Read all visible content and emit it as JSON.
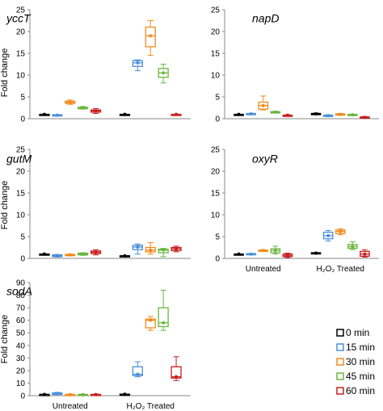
{
  "chart_data": [
    {
      "type": "box",
      "title": "yccT",
      "ylabel": "Fold change",
      "ylim": [
        0,
        25
      ],
      "yticks": [
        0,
        5,
        10,
        15,
        20,
        25
      ],
      "categories": [
        "Untreated",
        "H₂O₂ Treated"
      ],
      "show_categories": false,
      "groups": [
        {
          "category": "Untreated",
          "boxes": [
            {
              "series": "0 min",
              "min": 1.0,
              "q1": 1.0,
              "median": 1.0,
              "q3": 1.0,
              "max": 1.0
            },
            {
              "series": "15 min",
              "min": 0.6,
              "q1": 0.7,
              "median": 0.8,
              "q3": 0.9,
              "max": 0.9
            },
            {
              "series": "30 min",
              "min": 3.3,
              "q1": 3.5,
              "median": 3.8,
              "q3": 4.0,
              "max": 4.3
            },
            {
              "series": "45 min",
              "min": 2.2,
              "q1": 2.3,
              "median": 2.5,
              "q3": 2.6,
              "max": 2.8
            },
            {
              "series": "60 min",
              "min": 1.2,
              "q1": 1.5,
              "median": 1.8,
              "q3": 2.0,
              "max": 2.3
            }
          ]
        },
        {
          "category": "H₂O₂ Treated",
          "boxes": [
            {
              "series": "0 min",
              "min": 1.0,
              "q1": 1.0,
              "median": 1.0,
              "q3": 1.0,
              "max": 1.0
            },
            {
              "series": "15 min",
              "min": 11.0,
              "q1": 12.0,
              "median": 12.8,
              "q3": 13.3,
              "max": 13.5
            },
            {
              "series": "30 min",
              "min": 14.5,
              "q1": 16.5,
              "median": 19.0,
              "q3": 21.0,
              "max": 22.5
            },
            {
              "series": "45 min",
              "min": 8.2,
              "q1": 9.5,
              "median": 10.5,
              "q3": 11.5,
              "max": 12.5
            },
            {
              "series": "60 min",
              "min": 1.0,
              "q1": 1.0,
              "median": 1.0,
              "q3": 1.0,
              "max": 1.0
            }
          ]
        }
      ]
    },
    {
      "type": "box",
      "title": "napD",
      "ylabel": "",
      "ylim": [
        0,
        25
      ],
      "yticks": [
        0,
        5,
        10,
        15,
        20,
        25
      ],
      "categories": [
        "Untreated",
        "H₂O₂ Treated"
      ],
      "show_categories": false,
      "groups": [
        {
          "category": "Untreated",
          "boxes": [
            {
              "series": "0 min",
              "min": 1.0,
              "q1": 1.0,
              "median": 1.0,
              "q3": 1.0,
              "max": 1.0
            },
            {
              "series": "15 min",
              "min": 1.0,
              "q1": 1.0,
              "median": 1.1,
              "q3": 1.2,
              "max": 1.2
            },
            {
              "series": "30 min",
              "min": 2.0,
              "q1": 2.2,
              "median": 3.0,
              "q3": 3.8,
              "max": 5.2
            },
            {
              "series": "45 min",
              "min": 1.3,
              "q1": 1.4,
              "median": 1.5,
              "q3": 1.6,
              "max": 1.7
            },
            {
              "series": "60 min",
              "min": 0.6,
              "q1": 0.7,
              "median": 0.8,
              "q3": 0.8,
              "max": 0.9
            }
          ]
        },
        {
          "category": "H₂O₂ Treated",
          "boxes": [
            {
              "series": "0 min",
              "min": 1.0,
              "q1": 1.0,
              "median": 1.1,
              "q3": 1.2,
              "max": 1.3
            },
            {
              "series": "15 min",
              "min": 0.5,
              "q1": 0.6,
              "median": 0.7,
              "q3": 0.8,
              "max": 0.9
            },
            {
              "series": "30 min",
              "min": 0.8,
              "q1": 0.9,
              "median": 1.0,
              "q3": 1.1,
              "max": 1.2
            },
            {
              "series": "45 min",
              "min": 0.8,
              "q1": 0.8,
              "median": 0.9,
              "q3": 1.0,
              "max": 1.0
            },
            {
              "series": "60 min",
              "min": 0.1,
              "q1": 0.2,
              "median": 0.3,
              "q3": 0.4,
              "max": 0.5
            }
          ]
        }
      ]
    },
    {
      "type": "box",
      "title": "gutM",
      "ylabel": "Fold change",
      "ylim": [
        0,
        25
      ],
      "yticks": [
        0,
        5,
        10,
        15,
        20,
        25
      ],
      "categories": [
        "Untreated",
        "H₂O₂ Treated"
      ],
      "show_categories": false,
      "groups": [
        {
          "category": "Untreated",
          "boxes": [
            {
              "series": "0 min",
              "min": 1.0,
              "q1": 1.0,
              "median": 1.0,
              "q3": 1.0,
              "max": 1.0
            },
            {
              "series": "15 min",
              "min": 0.3,
              "q1": 0.4,
              "median": 0.6,
              "q3": 0.8,
              "max": 0.9
            },
            {
              "series": "30 min",
              "min": 0.6,
              "q1": 0.7,
              "median": 0.8,
              "q3": 0.9,
              "max": 1.0
            },
            {
              "series": "45 min",
              "min": 0.7,
              "q1": 0.8,
              "median": 1.0,
              "q3": 1.2,
              "max": 1.3
            },
            {
              "series": "60 min",
              "min": 0.8,
              "q1": 1.1,
              "median": 1.4,
              "q3": 1.7,
              "max": 2.0
            }
          ]
        },
        {
          "category": "H₂O₂ Treated",
          "boxes": [
            {
              "series": "0 min",
              "min": 0.6,
              "q1": 0.6,
              "median": 0.6,
              "q3": 0.6,
              "max": 0.6
            },
            {
              "series": "15 min",
              "min": 1.0,
              "q1": 2.0,
              "median": 2.6,
              "q3": 3.0,
              "max": 3.3
            },
            {
              "series": "30 min",
              "min": 1.0,
              "q1": 1.5,
              "median": 1.9,
              "q3": 2.5,
              "max": 3.6
            },
            {
              "series": "45 min",
              "min": 0.4,
              "q1": 1.3,
              "median": 1.9,
              "q3": 2.1,
              "max": 2.3
            },
            {
              "series": "60 min",
              "min": 1.5,
              "q1": 1.8,
              "median": 2.2,
              "q3": 2.5,
              "max": 2.8
            }
          ]
        }
      ]
    },
    {
      "type": "box",
      "title": "oxyR",
      "ylabel": "",
      "ylim": [
        0,
        25
      ],
      "yticks": [
        0,
        5,
        10,
        15,
        20,
        25
      ],
      "categories": [
        "Untreated",
        "H₂O₂ Treated"
      ],
      "show_categories": true,
      "groups": [
        {
          "category": "Untreated",
          "boxes": [
            {
              "series": "0 min",
              "min": 1.0,
              "q1": 1.0,
              "median": 1.0,
              "q3": 1.0,
              "max": 1.0
            },
            {
              "series": "15 min",
              "min": 0.8,
              "q1": 0.9,
              "median": 1.0,
              "q3": 1.1,
              "max": 1.1
            },
            {
              "series": "30 min",
              "min": 1.6,
              "q1": 1.7,
              "median": 1.8,
              "q3": 1.9,
              "max": 2.0
            },
            {
              "series": "45 min",
              "min": 1.0,
              "q1": 1.3,
              "median": 1.8,
              "q3": 2.2,
              "max": 2.8
            },
            {
              "series": "60 min",
              "min": 0.2,
              "q1": 0.4,
              "median": 0.7,
              "q3": 1.0,
              "max": 1.2
            }
          ]
        },
        {
          "category": "H₂O₂ Treated",
          "boxes": [
            {
              "series": "0 min",
              "min": 1.2,
              "q1": 1.2,
              "median": 1.2,
              "q3": 1.3,
              "max": 1.3
            },
            {
              "series": "15 min",
              "min": 4.0,
              "q1": 4.5,
              "median": 5.2,
              "q3": 6.0,
              "max": 6.4
            },
            {
              "series": "30 min",
              "min": 5.4,
              "q1": 5.7,
              "median": 6.2,
              "q3": 6.5,
              "max": 6.8
            },
            {
              "series": "45 min",
              "min": 2.0,
              "q1": 2.3,
              "median": 2.7,
              "q3": 3.2,
              "max": 3.8
            },
            {
              "series": "60 min",
              "min": 0.3,
              "q1": 0.5,
              "median": 1.0,
              "q3": 1.6,
              "max": 2.0
            }
          ]
        }
      ]
    },
    {
      "type": "box",
      "title": "sodA",
      "ylabel": "Fold change",
      "ylim": [
        0,
        90
      ],
      "yticks": [
        0,
        10,
        20,
        30,
        40,
        50,
        60,
        70,
        80,
        90
      ],
      "categories": [
        "Untreated",
        "H₂O₂ Treated"
      ],
      "show_categories": true,
      "groups": [
        {
          "category": "Untreated",
          "boxes": [
            {
              "series": "0 min",
              "min": 1.0,
              "q1": 1.0,
              "median": 1.0,
              "q3": 1.0,
              "max": 1.0
            },
            {
              "series": "15 min",
              "min": 0.8,
              "q1": 1.0,
              "median": 1.8,
              "q3": 2.2,
              "max": 2.6
            },
            {
              "series": "30 min",
              "min": 0.4,
              "q1": 0.6,
              "median": 0.8,
              "q3": 1.0,
              "max": 1.2
            },
            {
              "series": "45 min",
              "min": 0.4,
              "q1": 0.6,
              "median": 0.8,
              "q3": 1.0,
              "max": 1.2
            },
            {
              "series": "60 min",
              "min": 0.5,
              "q1": 0.7,
              "median": 0.9,
              "q3": 1.0,
              "max": 1.2
            }
          ]
        },
        {
          "category": "H₂O₂ Treated",
          "boxes": [
            {
              "series": "0 min",
              "min": 1.0,
              "q1": 1.0,
              "median": 1.1,
              "q3": 1.2,
              "max": 1.3
            },
            {
              "series": "15 min",
              "min": 15.0,
              "q1": 16.0,
              "median": 17.0,
              "q3": 23.0,
              "max": 27.0
            },
            {
              "series": "30 min",
              "min": 52.0,
              "q1": 54.0,
              "median": 60.0,
              "q3": 61.0,
              "max": 63.0
            },
            {
              "series": "45 min",
              "min": 52.0,
              "q1": 55.0,
              "median": 58.0,
              "q3": 70.0,
              "max": 84.0
            },
            {
              "series": "60 min",
              "min": 12.0,
              "q1": 14.0,
              "median": 15.0,
              "q3": 23.0,
              "max": 31.0
            }
          ]
        }
      ]
    }
  ],
  "legend": {
    "entries": [
      {
        "label": "0 min",
        "color": "#000000"
      },
      {
        "label": "15 min",
        "color": "#4a90d9"
      },
      {
        "label": "30 min",
        "color": "#f08a1c"
      },
      {
        "label": "45 min",
        "color": "#6ab63f"
      },
      {
        "label": "60 min",
        "color": "#c81e1e"
      }
    ]
  }
}
